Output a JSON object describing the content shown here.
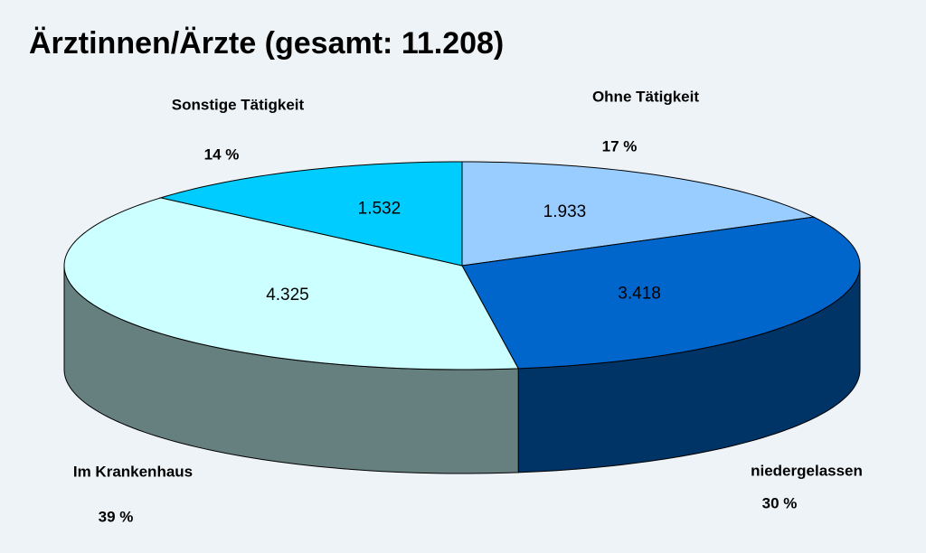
{
  "chart_data": {
    "type": "pie",
    "title": "Ärztinnen/Ärzte (gesamt: 11.208)",
    "categories": [
      "Ohne Tätigkeit",
      "niedergelassen",
      "Im Krankenhaus",
      "Sonstige Tätigkeit"
    ],
    "values": [
      1933,
      3418,
      4325,
      1532
    ],
    "value_labels": [
      "1.933",
      "3.418",
      "4.325",
      "1.532"
    ],
    "percent_labels": [
      "17 %",
      "30 %",
      "39 %",
      "14 %"
    ],
    "colors": [
      "#99ccff",
      "#0066cc",
      "#ccffff",
      "#00ccff"
    ],
    "side_colors": [
      "#5c7a99",
      "#003366",
      "#668080",
      "#007a99"
    ]
  }
}
